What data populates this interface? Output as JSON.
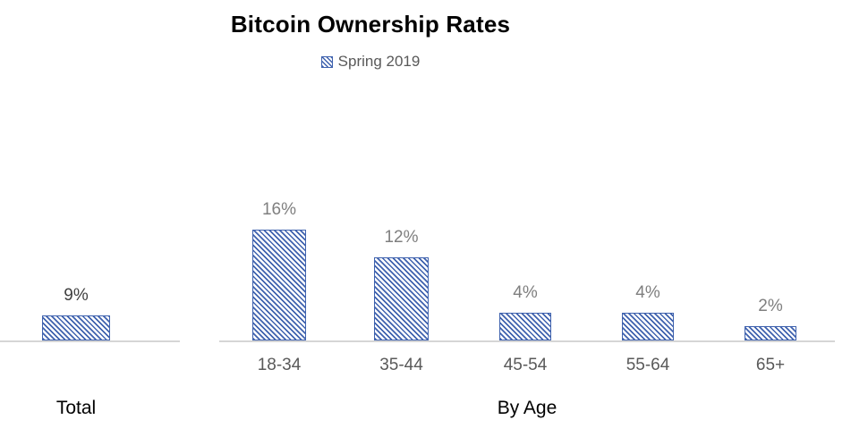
{
  "title": "Bitcoin Ownership Rates",
  "legend": {
    "label": "Spring 2019",
    "swatch": "diagonal-hatch-square"
  },
  "colors": {
    "bar_blue": "#3f62ae",
    "axis_gray": "#d6d6d6",
    "title_black": "#000000",
    "legend_gray": "#595959",
    "category_gray": "#595959",
    "total_value_label": "#3f3f3f",
    "age_value_label": "#7f7f7f"
  },
  "chart_data": {
    "type": "bar",
    "title": "Bitcoin Ownership Rates",
    "legend": [
      "Spring 2019"
    ],
    "legend_position": "top",
    "grid": false,
    "y_axis_visible": false,
    "bar_pattern": "blue diagonal stripe hatch, white background, solid blue border",
    "unit": "percent",
    "categories": [
      "Total",
      "18-34",
      "35-44",
      "45-54",
      "55-64",
      "65+"
    ],
    "values": [
      9,
      16,
      12,
      4,
      4,
      2
    ],
    "data_labels": [
      "9%",
      "16%",
      "12%",
      "4%",
      "4%",
      "2%"
    ],
    "groups": [
      {
        "label": "Total",
        "bars": [
          {
            "category": null,
            "value": 9,
            "data_label": "9%"
          }
        ]
      },
      {
        "label": "By Age",
        "bars": [
          {
            "category": "18-34",
            "value": 16,
            "data_label": "16%"
          },
          {
            "category": "35-44",
            "value": 12,
            "data_label": "12%"
          },
          {
            "category": "45-54",
            "value": 4,
            "data_label": "4%"
          },
          {
            "category": "55-64",
            "value": 4,
            "data_label": "4%"
          },
          {
            "category": "65+",
            "value": 2,
            "data_label": "2%"
          }
        ]
      }
    ]
  }
}
